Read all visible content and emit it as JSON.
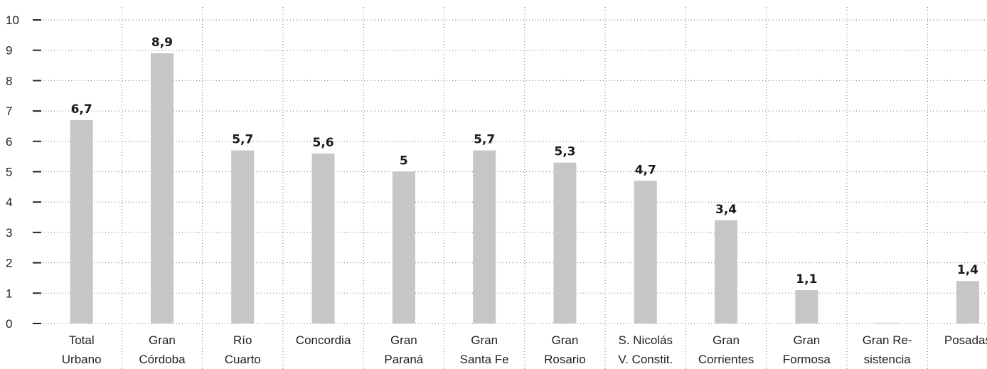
{
  "chart_data": {
    "type": "bar",
    "title": "",
    "xlabel": "",
    "ylabel": "",
    "ylim": [
      0,
      10
    ],
    "yticks": [
      "0",
      "1",
      "2",
      "3",
      "4",
      "5",
      "6",
      "7",
      "8",
      "9",
      "10"
    ],
    "grid": true,
    "categories": [
      [
        "Total",
        "Urbano"
      ],
      [
        "Gran",
        "Córdoba"
      ],
      [
        "Río",
        "Cuarto"
      ],
      [
        "Concordia"
      ],
      [
        "Gran",
        "Paraná"
      ],
      [
        "Gran",
        "Santa Fe"
      ],
      [
        "Gran",
        "Rosario"
      ],
      [
        "S. Nicolás",
        "V. Constit."
      ],
      [
        "Gran",
        "Corrientes"
      ],
      [
        "Gran",
        "Formosa"
      ],
      [
        "Gran Re-",
        "sistencia"
      ],
      [
        "Posadas"
      ]
    ],
    "values": [
      6.7,
      8.9,
      5.7,
      5.6,
      5.0,
      5.7,
      5.3,
      4.7,
      3.4,
      1.1,
      0.0,
      1.4
    ],
    "value_labels": [
      "6,7",
      "8,9",
      "5,7",
      "5,6",
      "5",
      "5,7",
      "5,3",
      "4,7",
      "3,4",
      "1,1",
      "",
      "1,4"
    ],
    "colors": {
      "bar": "#c6c6c6",
      "grid": "#777777",
      "text": "#222222"
    }
  }
}
